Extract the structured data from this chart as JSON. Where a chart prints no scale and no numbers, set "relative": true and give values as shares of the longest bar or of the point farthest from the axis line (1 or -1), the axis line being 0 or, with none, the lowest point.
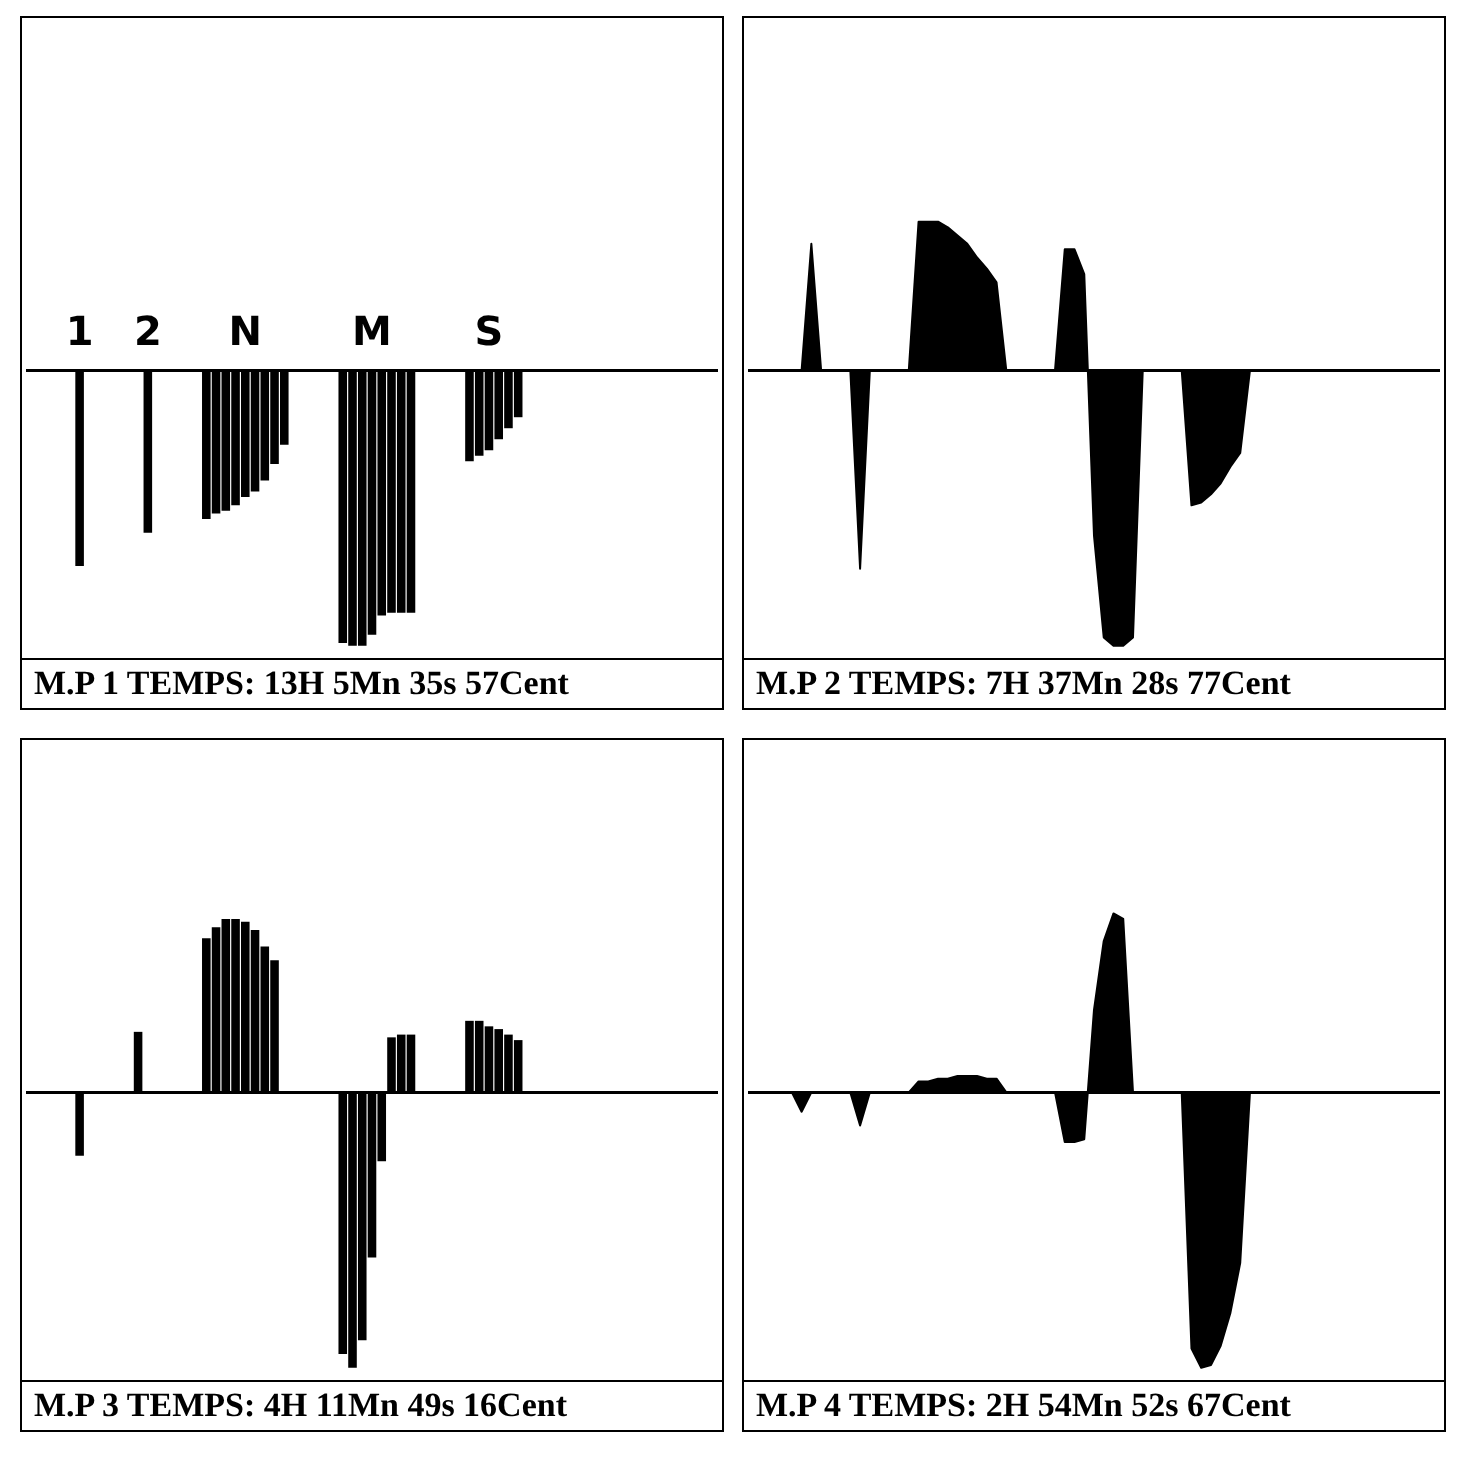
{
  "chart_data": [
    {
      "type": "bar",
      "relative": true,
      "title": "M.P 1 TEMPS: 13H 5Mn 35s 57Cent",
      "categories": [
        null,
        null,
        null,
        null,
        null,
        "1",
        null,
        null,
        null,
        null,
        null,
        null,
        "2",
        null,
        null,
        null,
        null,
        null,
        null,
        null,
        null,
        null,
        "N",
        null,
        null,
        null,
        null,
        null,
        null,
        null,
        null,
        null,
        null,
        null,
        null,
        "M",
        null,
        null,
        null,
        null,
        null,
        null,
        null,
        null,
        null,
        null,
        null,
        "S",
        null,
        null,
        null,
        null,
        null,
        null,
        null,
        null,
        null,
        null,
        null,
        null,
        null,
        null,
        null,
        null,
        null,
        null,
        null,
        null,
        null,
        null,
        null
      ],
      "series": [
        {
          "color": "#000000",
          "values": [
            0,
            0,
            0,
            0,
            0,
            -0.71,
            0,
            0,
            0,
            0,
            0,
            0,
            -0.59,
            0,
            0,
            0,
            0,
            0,
            -0.54,
            -0.52,
            -0.51,
            -0.49,
            -0.46,
            -0.44,
            -0.4,
            -0.34,
            -0.27,
            0,
            0,
            0,
            0,
            0,
            -0.99,
            -1,
            -1,
            -0.96,
            -0.89,
            -0.88,
            -0.88,
            -0.88,
            0,
            0,
            0,
            0,
            0,
            -0.33,
            -0.31,
            -0.29,
            -0.25,
            -0.21,
            -0.17,
            0,
            0,
            0,
            0,
            0,
            0,
            0,
            0,
            0,
            0,
            0,
            0,
            0,
            0,
            0,
            0,
            0,
            0,
            0,
            0
          ]
        }
      ]
    },
    {
      "type": "area",
      "relative": true,
      "title": "M.P 2 TEMPS: 7H 37Mn 28s 77Cent",
      "categories": [
        null,
        null,
        null,
        null,
        null,
        null,
        null,
        null,
        null,
        null,
        null,
        null,
        null,
        null,
        null,
        null,
        null,
        null,
        null,
        null,
        null,
        null,
        null,
        null,
        null,
        null,
        null,
        null,
        null,
        null,
        null,
        null,
        null,
        null,
        null,
        null,
        null,
        null,
        null,
        null,
        null,
        null,
        null,
        null,
        null,
        null,
        null,
        null,
        null,
        null,
        null,
        null,
        null,
        null,
        null,
        null,
        null,
        null,
        null,
        null,
        null,
        null,
        null,
        null,
        null,
        null,
        null,
        null,
        null,
        null,
        null
      ],
      "series": [
        {
          "color": "#000000",
          "values": [
            0,
            0,
            0,
            0,
            0,
            0,
            0.46,
            0,
            0,
            0,
            0,
            -0.72,
            0,
            0,
            0,
            0,
            0,
            0.54,
            0.54,
            0.54,
            0.52,
            0.49,
            0.46,
            0.41,
            0.37,
            0.32,
            0,
            0,
            0,
            0,
            0,
            0,
            0.44,
            0.44,
            0.35,
            -0.6,
            -0.97,
            -1,
            -1,
            -0.97,
            0,
            0,
            0,
            0,
            0,
            -0.49,
            -0.48,
            -0.45,
            -0.41,
            -0.35,
            -0.3,
            0,
            0,
            0,
            0,
            0,
            0,
            0,
            0,
            0,
            0,
            0,
            0,
            0,
            0,
            0,
            0,
            0,
            0,
            0,
            0
          ]
        }
      ]
    },
    {
      "type": "bar",
      "relative": true,
      "title": "M.P 3 TEMPS: 4H 11Mn 49s 16Cent",
      "categories": [
        null,
        null,
        null,
        null,
        null,
        null,
        null,
        null,
        null,
        null,
        null,
        null,
        null,
        null,
        null,
        null,
        null,
        null,
        null,
        null,
        null,
        null,
        null,
        null,
        null,
        null,
        null,
        null,
        null,
        null,
        null,
        null,
        null,
        null,
        null,
        null,
        null,
        null,
        null,
        null,
        null,
        null,
        null,
        null,
        null,
        null,
        null,
        null,
        null,
        null,
        null,
        null,
        null,
        null,
        null,
        null,
        null,
        null,
        null,
        null,
        null,
        null,
        null,
        null,
        null,
        null,
        null,
        null,
        null,
        null,
        null
      ],
      "series": [
        {
          "color": "#000000",
          "values": [
            0,
            0,
            0,
            0,
            0,
            -0.23,
            0,
            0,
            0,
            0,
            0,
            0.22,
            0,
            0,
            0,
            0,
            0,
            0,
            0.56,
            0.6,
            0.63,
            0.63,
            0.62,
            0.59,
            0.53,
            0.48,
            0,
            0,
            0,
            0,
            0,
            0,
            -0.95,
            -1,
            -0.9,
            -0.6,
            -0.25,
            0.2,
            0.21,
            0.21,
            0,
            0,
            0,
            0,
            0,
            0.26,
            0.26,
            0.24,
            0.23,
            0.21,
            0.19,
            0,
            0,
            0,
            0,
            0,
            0,
            0,
            0,
            0,
            0,
            0,
            0,
            0,
            0,
            0,
            0,
            0,
            0,
            0,
            0
          ]
        }
      ]
    },
    {
      "type": "area",
      "relative": true,
      "title": "M.P 4 TEMPS: 2H 54Mn 52s 67Cent",
      "categories": [
        null,
        null,
        null,
        null,
        null,
        null,
        null,
        null,
        null,
        null,
        null,
        null,
        null,
        null,
        null,
        null,
        null,
        null,
        null,
        null,
        null,
        null,
        null,
        null,
        null,
        null,
        null,
        null,
        null,
        null,
        null,
        null,
        null,
        null,
        null,
        null,
        null,
        null,
        null,
        null,
        null,
        null,
        null,
        null,
        null,
        null,
        null,
        null,
        null,
        null,
        null,
        null,
        null,
        null,
        null,
        null,
        null,
        null,
        null,
        null,
        null,
        null,
        null,
        null,
        null,
        null,
        null,
        null,
        null,
        null,
        null
      ],
      "series": [
        {
          "color": "#000000",
          "values": [
            0,
            0,
            0,
            0,
            0,
            -0.07,
            0,
            0,
            0,
            0,
            0,
            -0.12,
            0,
            0,
            0,
            0,
            0,
            0.04,
            0.04,
            0.05,
            0.05,
            0.06,
            0.06,
            0.06,
            0.05,
            0.05,
            0,
            0,
            0,
            0,
            0,
            0,
            -0.18,
            -0.18,
            -0.17,
            0.3,
            0.55,
            0.65,
            0.63,
            0,
            0,
            0,
            0,
            0,
            0,
            -0.93,
            -1,
            -0.99,
            -0.92,
            -0.8,
            -0.62,
            0,
            0,
            0,
            0,
            0,
            0,
            0,
            0,
            0,
            0,
            0,
            0,
            0,
            0,
            0,
            0,
            0,
            0,
            0,
            0
          ]
        }
      ]
    }
  ]
}
